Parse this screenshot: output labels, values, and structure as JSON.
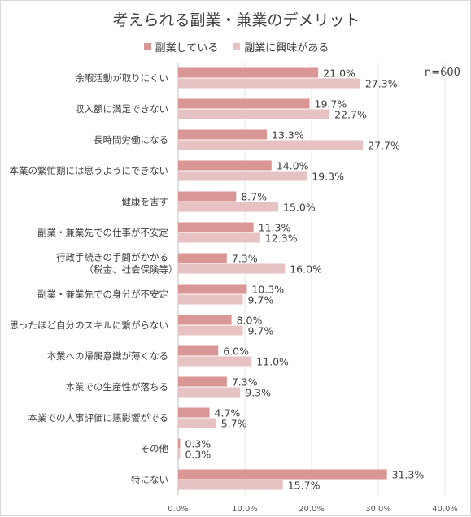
{
  "chart_data": {
    "type": "bar",
    "orientation": "horizontal",
    "title": "考えられる副業・兼業のデメリット",
    "note": "n=600",
    "categories": [
      "余暇活動が取りにくい",
      "収入額に満足できない",
      "長時間労働になる",
      "本業の繁忙期には思うようにできない",
      "健康を害す",
      "副業・兼業先での仕事が不安定",
      "行政手続きの手間がかかる\n（税金、社会保険等）",
      "副業・兼業先での身分が不安定",
      "思ったほど自分のスキルに繋がらない",
      "本業への帰属意識が薄くなる",
      "本業での生産性が落ちる",
      "本業での人事評価に悪影響がでる",
      "その他",
      "特にない"
    ],
    "series": [
      {
        "name": "副業している",
        "color": "#d99694",
        "values": [
          21.0,
          19.7,
          13.3,
          14.0,
          8.7,
          11.3,
          7.3,
          10.3,
          8.0,
          6.0,
          7.3,
          4.7,
          0.3,
          31.3
        ],
        "labels": [
          "21.0%",
          "19.7%",
          "13.3%",
          "14.0%",
          "8.7%",
          "11.3%",
          "7.3%",
          "10.3%",
          "8.0%",
          "6.0%",
          "7.3%",
          "4.7%",
          "0.3%",
          "31.3%"
        ]
      },
      {
        "name": "副業に興味がある",
        "color": "#e6c2c3",
        "values": [
          27.3,
          22.7,
          27.7,
          19.3,
          15.0,
          12.3,
          16.0,
          9.7,
          9.7,
          11.0,
          9.3,
          5.7,
          0.3,
          15.7
        ],
        "labels": [
          "27.3%",
          "22.7%",
          "27.7%",
          "19.3%",
          "15.0%",
          "12.3%",
          "16.0%",
          "9.7%",
          "9.7%",
          "11.0%",
          "9.3%",
          "5.7%",
          "0.3%",
          "15.7%"
        ]
      }
    ],
    "xlim": [
      0,
      40
    ],
    "xticks": [
      0,
      10,
      20,
      30,
      40
    ],
    "xtick_labels": [
      "0.0%",
      "10.0%",
      "20.0%",
      "30.0%",
      "40.0%"
    ],
    "grid": true,
    "legend_position": "top"
  }
}
